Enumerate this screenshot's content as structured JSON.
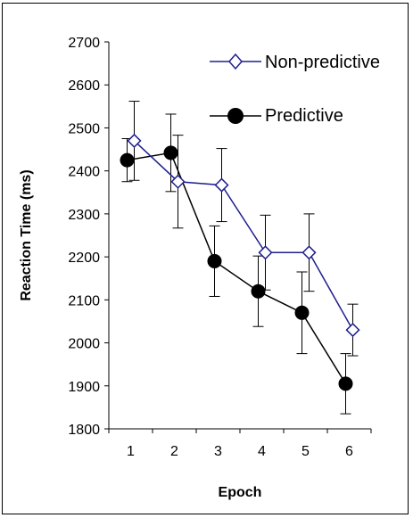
{
  "chart_data": {
    "type": "line",
    "xlabel": "Epoch",
    "ylabel": "Reaction Time (ms)",
    "x": [
      1,
      2,
      3,
      4,
      5,
      6
    ],
    "ylim": [
      1800,
      2700
    ],
    "yticks": [
      1800,
      1900,
      2000,
      2100,
      2200,
      2300,
      2400,
      2500,
      2600,
      2700
    ],
    "grid": false,
    "legend_position": "top-right",
    "series": [
      {
        "name": "Non-predictive",
        "marker": "open-diamond",
        "color": "#1f1f8f",
        "values": [
          2470,
          2375,
          2367,
          2210,
          2210,
          2030
        ],
        "error": [
          92,
          108,
          85,
          87,
          90,
          60
        ]
      },
      {
        "name": "Predictive",
        "marker": "filled-circle",
        "color": "#000000",
        "values": [
          2425,
          2442,
          2190,
          2120,
          2070,
          1905
        ],
        "error": [
          50,
          90,
          82,
          82,
          95,
          70
        ]
      }
    ]
  }
}
